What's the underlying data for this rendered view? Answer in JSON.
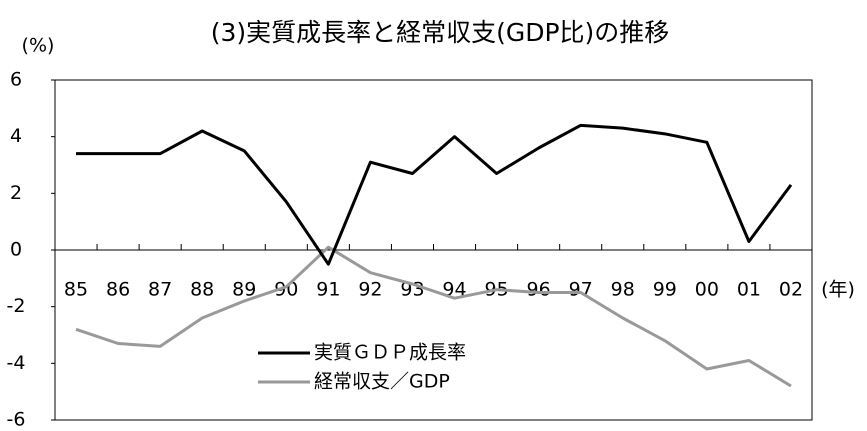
{
  "chart_data": {
    "type": "line",
    "title": "(3)実質成長率と経常収支(GDP比)の推移",
    "y_label": "(%)",
    "x_label": "(年)",
    "categories": [
      "85",
      "86",
      "87",
      "88",
      "89",
      "90",
      "91",
      "92",
      "93",
      "94",
      "95",
      "96",
      "97",
      "98",
      "99",
      "00",
      "01",
      "02"
    ],
    "series": [
      {
        "name": "実質ＧＤＰ成長率",
        "color": "#000000",
        "values": [
          3.4,
          3.4,
          3.4,
          4.2,
          3.5,
          1.7,
          -0.5,
          3.1,
          2.7,
          4.0,
          2.7,
          3.6,
          4.4,
          4.3,
          4.1,
          3.8,
          0.3,
          2.3
        ]
      },
      {
        "name": "経常収支／GDP",
        "color": "#999999",
        "values": [
          -2.8,
          -3.3,
          -3.4,
          -2.4,
          -1.8,
          -1.3,
          0.1,
          -0.8,
          -1.2,
          -1.7,
          -1.4,
          -1.5,
          -1.5,
          -2.4,
          -3.2,
          -4.2,
          -3.9,
          -4.8
        ]
      }
    ],
    "ylim": [
      -6,
      6
    ],
    "yticks": [
      -6,
      -4,
      -2,
      0,
      2,
      4,
      6
    ]
  }
}
